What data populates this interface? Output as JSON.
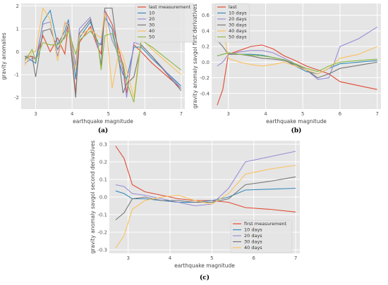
{
  "chart_data": [
    {
      "type": "line",
      "caption": "(a)",
      "xlabel": "earthquake magnitude",
      "ylabel": "gravity anomalies",
      "xlim": [
        2.6,
        7.1
      ],
      "ylim": [
        -2.5,
        2.1
      ],
      "xticks": [
        "3",
        "4",
        "5",
        "6",
        "7"
      ],
      "yticks": [
        "-2",
        "-1",
        "0",
        "1",
        "2"
      ],
      "grid": true,
      "legend_position": "upper right",
      "series": [
        {
          "name": "last measurement",
          "color": "#e24a33",
          "x": [
            2.7,
            2.9,
            3.0,
            3.2,
            3.4,
            3.6,
            3.8,
            3.9,
            4.1,
            4.2,
            4.5,
            4.7,
            4.8,
            4.9,
            5.1,
            5.3,
            5.4,
            5.5,
            5.7,
            5.9,
            6.2,
            7.0
          ],
          "y": [
            -0.3,
            -0.2,
            -0.3,
            0.7,
            0.0,
            0.6,
            -0.1,
            1.2,
            -1.8,
            0.4,
            1.1,
            0.2,
            -0.1,
            1.8,
            1.2,
            0.0,
            -0.6,
            -1.8,
            0.3,
            0.0,
            -0.5,
            -1.6
          ]
        },
        {
          "name": "10",
          "color": "#348abd",
          "x": [
            2.7,
            2.9,
            3.0,
            3.2,
            3.4,
            3.6,
            3.8,
            3.9,
            4.1,
            4.2,
            4.5,
            4.7,
            4.8,
            4.9,
            5.1,
            5.3,
            5.4,
            5.5,
            5.7,
            5.9,
            6.2,
            7.0
          ],
          "y": [
            -0.2,
            -0.4,
            -0.5,
            1.3,
            1.8,
            0.3,
            0.9,
            1.4,
            -1.2,
            0.6,
            1.3,
            0.4,
            0.3,
            1.5,
            1.0,
            -0.5,
            -1.0,
            -1.2,
            0.2,
            0.2,
            -0.3,
            -1.5
          ]
        },
        {
          "name": "20",
          "color": "#988ed5",
          "x": [
            2.7,
            2.9,
            3.0,
            3.2,
            3.4,
            3.6,
            3.8,
            3.9,
            4.1,
            4.2,
            4.5,
            4.7,
            4.8,
            4.9,
            5.1,
            5.3,
            5.4,
            5.5,
            5.7,
            5.9,
            6.2,
            7.0
          ],
          "y": [
            -0.5,
            -0.3,
            -0.3,
            1.2,
            1.3,
            -0.2,
            1.2,
            1.3,
            -0.6,
            1.0,
            1.5,
            0.2,
            0.4,
            1.8,
            0.5,
            -0.2,
            -0.8,
            -2.0,
            0.4,
            0.3,
            -0.2,
            -1.6
          ]
        },
        {
          "name": "30",
          "color": "#777777",
          "x": [
            2.7,
            2.9,
            3.0,
            3.2,
            3.4,
            3.6,
            3.8,
            3.9,
            4.1,
            4.2,
            4.5,
            4.7,
            4.8,
            4.9,
            5.1,
            5.3,
            5.4,
            5.5,
            5.7,
            5.9,
            6.2,
            7.0
          ],
          "y": [
            -0.2,
            -0.2,
            -1.1,
            0.9,
            1.0,
            0.1,
            0.7,
            1.2,
            -2.0,
            0.8,
            1.4,
            0.4,
            -0.6,
            1.9,
            1.9,
            -0.5,
            -1.8,
            -1.4,
            -1.1,
            0.3,
            -0.2,
            -1.7
          ]
        },
        {
          "name": "40",
          "color": "#fbc15e",
          "x": [
            2.7,
            2.9,
            3.0,
            3.2,
            3.4,
            3.6,
            3.8,
            3.9,
            4.1,
            4.2,
            4.5,
            4.7,
            4.8,
            4.9,
            5.1,
            5.3,
            5.4,
            5.5,
            5.7,
            5.9,
            6.2,
            7.0
          ],
          "y": [
            -0.6,
            0.0,
            0.0,
            1.9,
            1.4,
            -0.4,
            1.3,
            1.1,
            -0.8,
            0.7,
            1.0,
            0.7,
            0.6,
            1.7,
            -1.6,
            0.1,
            -0.2,
            -0.8,
            -2.0,
            0.6,
            0.1,
            -1.0
          ]
        },
        {
          "name": "50",
          "color": "#8eba42",
          "x": [
            2.7,
            2.9,
            3.0,
            3.2,
            3.4,
            3.6,
            3.8,
            3.9,
            4.1,
            4.2,
            4.5,
            4.7,
            4.8,
            4.9,
            5.1,
            5.3,
            5.4,
            5.5,
            5.7,
            5.9,
            6.2,
            7.0
          ],
          "y": [
            -0.4,
            0.1,
            -0.4,
            0.4,
            0.3,
            0.3,
            0.6,
            0.9,
            -0.1,
            0.5,
            0.9,
            0.5,
            -0.8,
            0.7,
            0.8,
            -0.4,
            -0.5,
            -1.3,
            -2.2,
            0.5,
            0.2,
            -0.8
          ]
        }
      ]
    },
    {
      "type": "line",
      "caption": "(b)",
      "xlabel": "earthquake magnitude",
      "ylabel": "gravity anomaly savgol first derivatives",
      "xlim": [
        2.55,
        7.1
      ],
      "ylim": [
        -0.6,
        0.75
      ],
      "xticks": [
        "3",
        "4",
        "5",
        "6",
        "7"
      ],
      "yticks": [
        "-0.4",
        "-0.2",
        "0.0",
        "0.2",
        "0.4",
        "0.6"
      ],
      "grid": true,
      "legend_position": "upper left",
      "series": [
        {
          "name": "last",
          "color": "#e24a33",
          "x": [
            2.7,
            2.85,
            3.0,
            3.3,
            3.6,
            3.9,
            4.2,
            4.5,
            4.8,
            5.1,
            5.4,
            5.7,
            6.0,
            6.5,
            7.0
          ],
          "y": [
            -0.55,
            -0.35,
            0.1,
            0.15,
            0.2,
            0.22,
            0.17,
            0.08,
            0.02,
            -0.05,
            -0.1,
            -0.15,
            -0.25,
            -0.3,
            -0.35
          ]
        },
        {
          "name": "10 days",
          "color": "#348abd",
          "x": [
            2.7,
            2.85,
            3.0,
            3.3,
            3.6,
            3.9,
            4.2,
            4.5,
            4.8,
            5.1,
            5.4,
            5.7,
            6.0,
            6.5,
            7.0
          ],
          "y": [
            0.08,
            0.1,
            0.12,
            0.1,
            0.1,
            0.09,
            0.06,
            0.03,
            -0.05,
            -0.12,
            -0.15,
            -0.08,
            -0.02,
            0.0,
            0.02
          ]
        },
        {
          "name": "20 days",
          "color": "#988ed5",
          "x": [
            2.7,
            2.85,
            3.0,
            3.3,
            3.6,
            3.9,
            4.2,
            4.5,
            4.8,
            5.1,
            5.4,
            5.7,
            6.0,
            6.5,
            7.0
          ],
          "y": [
            -0.05,
            0.0,
            0.1,
            0.13,
            0.15,
            0.15,
            0.12,
            0.05,
            -0.02,
            -0.1,
            -0.22,
            -0.2,
            0.2,
            0.3,
            0.45
          ]
        },
        {
          "name": "30 days",
          "color": "#777777",
          "x": [
            2.7,
            2.85,
            3.0,
            3.3,
            3.6,
            3.9,
            4.2,
            4.5,
            4.8,
            5.1,
            5.4,
            5.7,
            6.0,
            6.5,
            7.0
          ],
          "y": [
            0.28,
            0.2,
            0.1,
            0.1,
            0.08,
            0.05,
            0.04,
            0.02,
            -0.03,
            -0.1,
            -0.2,
            -0.15,
            -0.08,
            -0.04,
            0.0
          ]
        },
        {
          "name": "40 days",
          "color": "#fbc15e",
          "x": [
            2.7,
            2.85,
            3.0,
            3.3,
            3.6,
            3.9,
            4.2,
            4.5,
            4.8,
            5.1,
            5.4,
            5.7,
            6.0,
            6.5,
            7.0
          ],
          "y": [
            0.7,
            0.45,
            0.05,
            0.0,
            -0.03,
            -0.05,
            -0.03,
            0.0,
            -0.05,
            -0.1,
            -0.15,
            -0.08,
            0.05,
            0.1,
            0.2
          ]
        },
        {
          "name": "50 days",
          "color": "#8eba42",
          "x": [
            2.7,
            2.85,
            3.0,
            3.3,
            3.6,
            3.9,
            4.2,
            4.5,
            4.8,
            5.1,
            5.4,
            5.7,
            6.0,
            6.5,
            7.0
          ],
          "y": [
            0.08,
            0.1,
            0.12,
            0.1,
            0.09,
            0.08,
            0.06,
            0.03,
            -0.02,
            -0.08,
            -0.12,
            -0.05,
            0.0,
            0.02,
            0.04
          ]
        }
      ]
    },
    {
      "type": "line",
      "caption": "(c)",
      "xlabel": "earthquake magnitude",
      "ylabel": "gravity anomaly savgol second derivatives",
      "xlim": [
        2.55,
        7.1
      ],
      "ylim": [
        -0.32,
        0.32
      ],
      "xticks": [
        "3",
        "4",
        "5",
        "6",
        "7"
      ],
      "yticks": [
        "-0.3",
        "-0.2",
        "-0.1",
        "0.0",
        "0.1",
        "0.2",
        "0.3"
      ],
      "grid": true,
      "legend_position": "lower right",
      "series": [
        {
          "name": "first measurement",
          "color": "#e24a33",
          "x": [
            2.7,
            2.9,
            3.1,
            3.4,
            3.8,
            4.2,
            4.6,
            5.0,
            5.4,
            5.8,
            6.4,
            7.0
          ],
          "y": [
            0.29,
            0.22,
            0.07,
            0.03,
            0.01,
            -0.01,
            -0.02,
            -0.02,
            -0.03,
            -0.06,
            -0.07,
            -0.085
          ]
        },
        {
          "name": "10 days",
          "color": "#348abd",
          "x": [
            2.7,
            2.9,
            3.1,
            3.4,
            3.8,
            4.2,
            4.6,
            5.0,
            5.4,
            5.8,
            6.4,
            7.0
          ],
          "y": [
            0.035,
            0.02,
            -0.01,
            -0.01,
            -0.02,
            -0.03,
            -0.03,
            -0.02,
            0.0,
            0.04,
            0.045,
            0.05
          ]
        },
        {
          "name": "20 days",
          "color": "#988ed5",
          "x": [
            2.7,
            2.9,
            3.1,
            3.4,
            3.8,
            4.2,
            4.6,
            5.0,
            5.4,
            5.8,
            6.4,
            7.0
          ],
          "y": [
            0.07,
            0.06,
            0.02,
            0.01,
            -0.01,
            -0.03,
            -0.05,
            -0.04,
            0.05,
            0.2,
            0.23,
            0.26
          ]
        },
        {
          "name": "30 days",
          "color": "#777777",
          "x": [
            2.7,
            2.9,
            3.1,
            3.4,
            3.8,
            4.2,
            4.6,
            5.0,
            5.4,
            5.8,
            6.4,
            7.0
          ],
          "y": [
            -0.13,
            -0.09,
            -0.01,
            0.0,
            -0.02,
            -0.02,
            -0.03,
            -0.03,
            -0.01,
            0.07,
            0.09,
            0.115
          ]
        },
        {
          "name": "40 days",
          "color": "#fbc15e",
          "x": [
            2.7,
            2.9,
            3.1,
            3.4,
            3.8,
            4.2,
            4.6,
            5.0,
            5.4,
            5.8,
            6.4,
            7.0
          ],
          "y": [
            -0.29,
            -0.22,
            -0.07,
            -0.02,
            0.0,
            0.01,
            -0.02,
            -0.04,
            0.02,
            0.13,
            0.16,
            0.18
          ]
        }
      ]
    }
  ]
}
